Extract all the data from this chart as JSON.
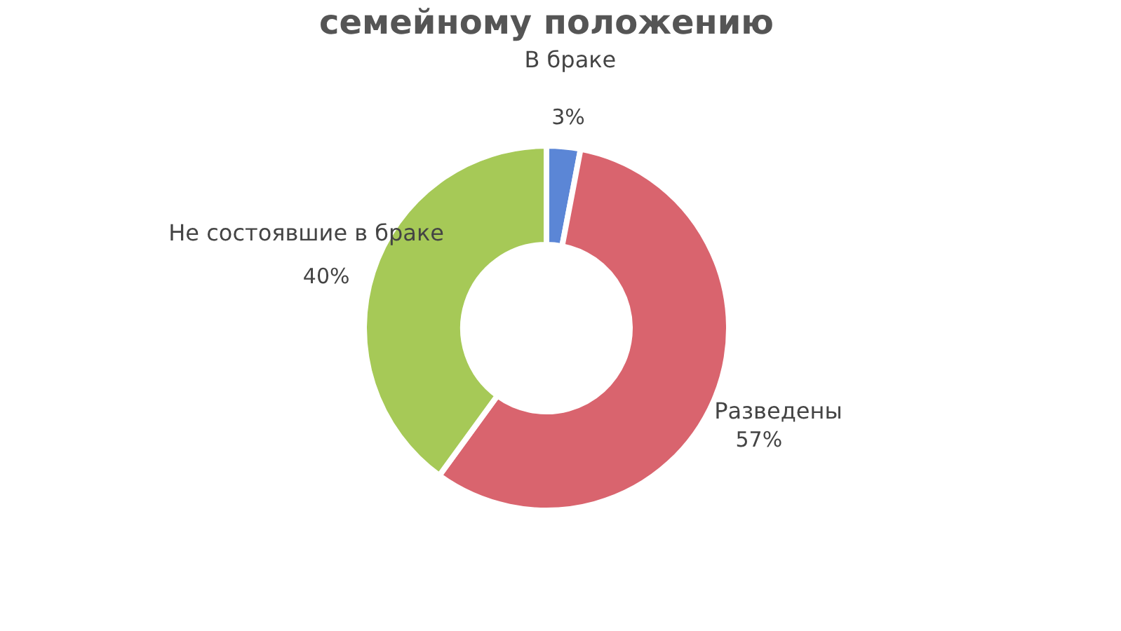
{
  "chart_data": {
    "type": "donut",
    "title": "семейному положению",
    "categories": [
      "В браке",
      "Разведены",
      "Не состоявшие в браке"
    ],
    "values": [
      3,
      57,
      40
    ],
    "colors": [
      "#5b86d6",
      "#d9646e",
      "#a6c957"
    ],
    "value_labels": [
      "3%",
      "57%",
      "40%"
    ],
    "legend": false
  }
}
